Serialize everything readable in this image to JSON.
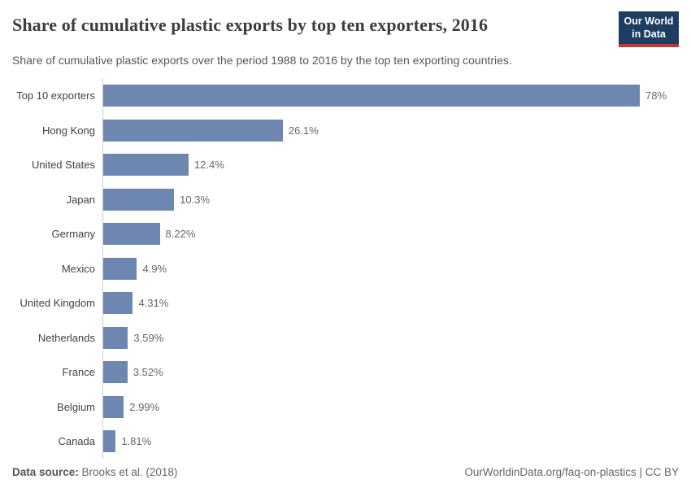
{
  "header": {
    "title": "Share of cumulative plastic exports by top ten exporters, 2016",
    "subtitle": "Share of cumulative plastic exports over the period 1988 to 2016 by the top ten exporting countries.",
    "logo": {
      "line1": "Our World",
      "line2": "in Data",
      "bg_color": "#1d3d63",
      "accent_color": "#c5382f"
    }
  },
  "chart_data": {
    "type": "bar",
    "orientation": "horizontal",
    "title": "Share of cumulative plastic exports by top ten exporters, 2016",
    "subtitle": "Share of cumulative plastic exports over the period 1988 to 2016 by the top ten exporting countries.",
    "categories": [
      "Top 10 exporters",
      "Hong Kong",
      "United States",
      "Japan",
      "Germany",
      "Mexico",
      "United Kingdom",
      "Netherlands",
      "France",
      "Belgium",
      "Canada"
    ],
    "values": [
      78,
      26.1,
      12.4,
      10.3,
      8.22,
      4.9,
      4.31,
      3.59,
      3.52,
      2.99,
      1.81
    ],
    "value_labels": [
      "78%",
      "26.1%",
      "12.4%",
      "10.3%",
      "8.22%",
      "4.9%",
      "4.31%",
      "3.59%",
      "3.52%",
      "2.99%",
      "1.81%"
    ],
    "unit": "%",
    "xlabel": "",
    "ylabel": "",
    "xlim": [
      0,
      78
    ],
    "grid": false,
    "legend_position": "none",
    "bar_color": "#6e87b1",
    "axis_line_color": "#d0d0d0"
  },
  "footer": {
    "source_label": "Data source:",
    "source_value": "Brooks et al. (2018)",
    "credit": "OurWorldinData.org/faq-on-plastics | CC BY"
  }
}
